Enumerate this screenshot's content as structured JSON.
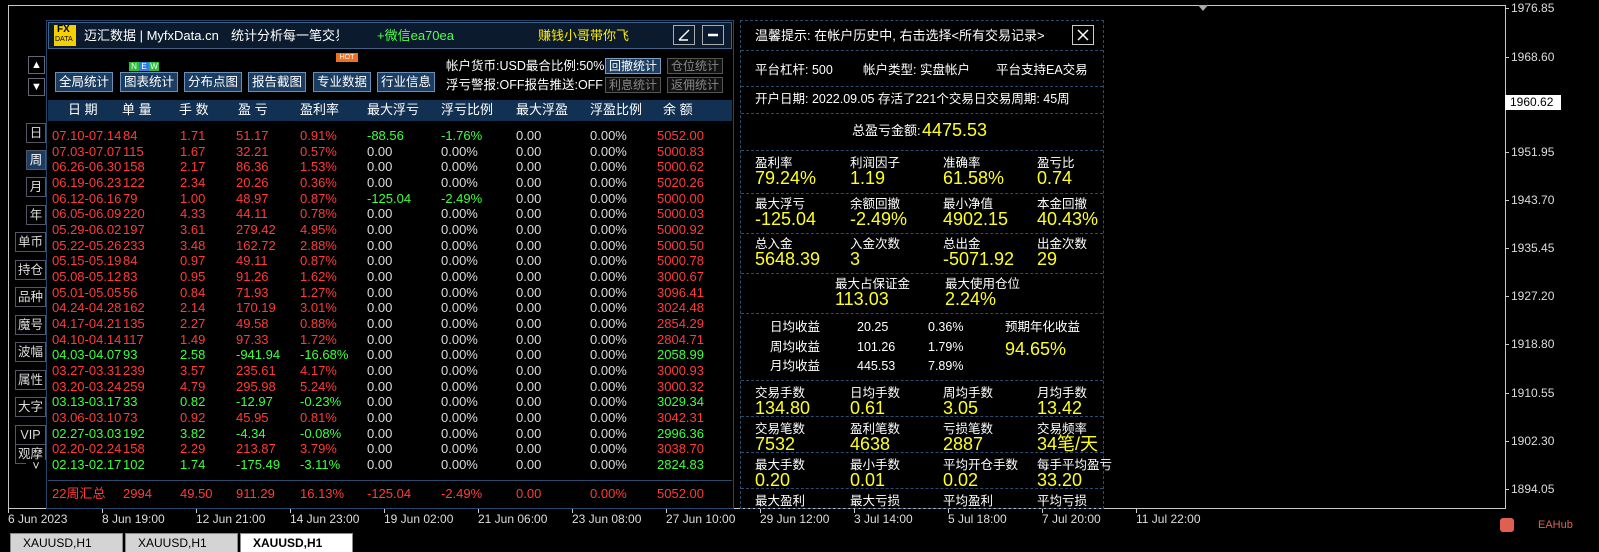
{
  "chart": {
    "price_labels": [
      "1976.85",
      "1968.60",
      "1951.95",
      "1943.70",
      "1935.45",
      "1927.20",
      "1918.80",
      "1910.55",
      "1902.30",
      "1894.05"
    ],
    "current_price": "1960.62",
    "time_labels": [
      "6 Jun 2023",
      "8 Jun 19:00",
      "12 Jun 21:00",
      "14 Jun 23:00",
      "19 Jun 02:00",
      "21 Jun 06:00",
      "23 Jun 08:00",
      "27 Jun 10:00",
      "29 Jun 12:00",
      "3 Jul 14:00",
      "5 Jul 18:00",
      "7 Jul 20:00",
      "11 Jul 22:00"
    ],
    "tabs": [
      "XAUUSD,H1",
      "XAUUSD,H1",
      "XAUUSD,H1"
    ],
    "watermark": "EAHub"
  },
  "panel": {
    "logo": [
      "FX",
      "DATA"
    ],
    "brand": "迈汇数据 | MyfxData.cn",
    "slogan": "统计分析每一笔交易",
    "wechat": "+微信ea70ea",
    "motto": "赚钱小哥带你飞",
    "buttons": [
      "全局统计",
      "图表统计",
      "分布点图",
      "报告截图",
      "专业数据",
      "行业信息"
    ],
    "badge_new": [
      "N",
      "E",
      "W"
    ],
    "badge_hot": "HOT",
    "info": [
      {
        "text": "帐户货币:USD最合比例:50%",
        "buttons": [
          "回撤统计",
          "仓位统计"
        ]
      },
      {
        "text": "浮亏警报:OFF报告推送:OFF",
        "buttons": [
          "利息统计",
          "返佣统计"
        ]
      }
    ],
    "arrows": [
      "▲",
      "▼"
    ],
    "side_buttons": [
      "日",
      "周",
      "月",
      "年",
      "单币",
      "持仓",
      "品种",
      "魔号",
      "波幅",
      "属性",
      "大字",
      "VIP",
      "观摩",
      "˅"
    ],
    "table": {
      "headers": [
        "日 期",
        "单 量",
        "手 数",
        "盈 亏",
        "盈利率",
        "最大浮亏",
        "浮亏比例",
        "最大浮盈",
        "浮盈比例",
        "余 额"
      ],
      "rows": [
        [
          "07.10-07.14",
          "84",
          "1.71",
          "51.17",
          "0.91%",
          "-88.56",
          "-1.76%",
          "0.00",
          "0.00%",
          "5052.00"
        ],
        [
          "07.03-07.07",
          "115",
          "1.67",
          "32.21",
          "0.57%",
          "0.00",
          "0.00%",
          "0.00",
          "0.00%",
          "5000.83"
        ],
        [
          "06.26-06.30",
          "158",
          "2.17",
          "86.36",
          "1.53%",
          "0.00",
          "0.00%",
          "0.00",
          "0.00%",
          "5000.62"
        ],
        [
          "06.19-06.23",
          "122",
          "2.34",
          "20.26",
          "0.36%",
          "0.00",
          "0.00%",
          "0.00",
          "0.00%",
          "5020.26"
        ],
        [
          "06.12-06.16",
          "79",
          "1.00",
          "48.97",
          "0.87%",
          "-125.04",
          "-2.49%",
          "0.00",
          "0.00%",
          "5000.00"
        ],
        [
          "06.05-06.09",
          "220",
          "4.33",
          "44.11",
          "0.78%",
          "0.00",
          "0.00%",
          "0.00",
          "0.00%",
          "5000.03"
        ],
        [
          "05.29-06.02",
          "197",
          "3.61",
          "279.42",
          "4.95%",
          "0.00",
          "0.00%",
          "0.00",
          "0.00%",
          "5000.92"
        ],
        [
          "05.22-05.26",
          "233",
          "3.48",
          "162.72",
          "2.88%",
          "0.00",
          "0.00%",
          "0.00",
          "0.00%",
          "5000.50"
        ],
        [
          "05.15-05.19",
          "84",
          "0.97",
          "49.11",
          "0.87%",
          "0.00",
          "0.00%",
          "0.00",
          "0.00%",
          "5000.78"
        ],
        [
          "05.08-05.12",
          "83",
          "0.95",
          "91.26",
          "1.62%",
          "0.00",
          "0.00%",
          "0.00",
          "0.00%",
          "3000.67"
        ],
        [
          "05.01-05.05",
          "56",
          "0.84",
          "71.93",
          "1.27%",
          "0.00",
          "0.00%",
          "0.00",
          "0.00%",
          "3096.41"
        ],
        [
          "04.24-04.28",
          "162",
          "2.14",
          "170.19",
          "3.01%",
          "0.00",
          "0.00%",
          "0.00",
          "0.00%",
          "3024.48"
        ],
        [
          "04.17-04.21",
          "135",
          "2.27",
          "49.58",
          "0.88%",
          "0.00",
          "0.00%",
          "0.00",
          "0.00%",
          "2854.29"
        ],
        [
          "04.10-04.14",
          "117",
          "1.49",
          "97.33",
          "1.72%",
          "0.00",
          "0.00%",
          "0.00",
          "0.00%",
          "2804.71"
        ],
        [
          "04.03-04.07",
          "93",
          "2.58",
          "-941.94",
          "-16.68%",
          "0.00",
          "0.00%",
          "0.00",
          "0.00%",
          "2058.99"
        ],
        [
          "03.27-03.31",
          "239",
          "3.57",
          "235.61",
          "4.17%",
          "0.00",
          "0.00%",
          "0.00",
          "0.00%",
          "3000.93"
        ],
        [
          "03.20-03.24",
          "259",
          "4.79",
          "295.98",
          "5.24%",
          "0.00",
          "0.00%",
          "0.00",
          "0.00%",
          "3000.32"
        ],
        [
          "03.13-03.17",
          "33",
          "0.82",
          "-12.97",
          "-0.23%",
          "0.00",
          "0.00%",
          "0.00",
          "0.00%",
          "3029.34"
        ],
        [
          "03.06-03.10",
          "73",
          "0.92",
          "45.95",
          "0.81%",
          "0.00",
          "0.00%",
          "0.00",
          "0.00%",
          "3042.31"
        ],
        [
          "02.27-03.03",
          "192",
          "3.82",
          "-4.34",
          "-0.08%",
          "0.00",
          "0.00%",
          "0.00",
          "0.00%",
          "2996.36"
        ],
        [
          "02.20-02.24",
          "158",
          "2.29",
          "213.87",
          "3.79%",
          "0.00",
          "0.00%",
          "0.00",
          "0.00%",
          "3038.70"
        ],
        [
          "02.13-02.17",
          "102",
          "1.74",
          "-175.49",
          "-3.11%",
          "0.00",
          "0.00%",
          "0.00",
          "0.00%",
          "2824.83"
        ]
      ],
      "summary": [
        "22周汇总",
        "2994",
        "49.50",
        "911.29",
        "16.13%",
        "-125.04",
        "-2.49%",
        "0.00",
        "0.00%",
        "5052.00"
      ]
    }
  },
  "stats": {
    "tip": "温馨提示: 在帐户历史中, 右击选择<所有交易记录>",
    "account": [
      "平台杠杆: 500",
      "帐户类型: 实盘帐户",
      "平台支持EA交易"
    ],
    "open": "开户日期: 2022.09.05 存活了221个交易日交易周期: 45周",
    "total_label": "总盈亏金额:",
    "total": "4475.53",
    "grid": [
      [
        {
          "label": "盈利率",
          "value": "79.24%"
        },
        {
          "label": "利润因子",
          "value": "1.19"
        },
        {
          "label": "准确率",
          "value": "61.58%"
        },
        {
          "label": "盈亏比",
          "value": "0.74"
        }
      ],
      [
        {
          "label": "最大浮亏",
          "value": "-125.04"
        },
        {
          "label": "余额回撤",
          "value": "-2.49%"
        },
        {
          "label": "最小净值",
          "value": "4902.15"
        },
        {
          "label": "本金回撤",
          "value": "40.43%"
        }
      ],
      [
        {
          "label": "总入金",
          "value": "5648.39"
        },
        {
          "label": "入金次数",
          "value": "3"
        },
        {
          "label": "总出金",
          "value": "-5071.92"
        },
        {
          "label": "出金次数",
          "value": "29"
        }
      ]
    ],
    "margin": [
      {
        "label": "最大占保证金",
        "value": "113.03"
      },
      {
        "label": "最大使用仓位",
        "value": "2.24%"
      }
    ],
    "averages": [
      [
        "日均收益",
        "20.25",
        "0.36%"
      ],
      [
        "周均收益",
        "101.26",
        "1.79%"
      ],
      [
        "月均收益",
        "445.53",
        "7.89%"
      ]
    ],
    "annual": {
      "label": "预期年化收益",
      "value": "94.65%"
    },
    "trade_grid": [
      [
        {
          "label": "交易手数",
          "value": "134.80"
        },
        {
          "label": "日均手数",
          "value": "0.61"
        },
        {
          "label": "周均手数",
          "value": "3.05"
        },
        {
          "label": "月均手数",
          "value": "13.42"
        }
      ],
      [
        {
          "label": "交易笔数",
          "value": "7532"
        },
        {
          "label": "盈利笔数",
          "value": "4638"
        },
        {
          "label": "亏损笔数",
          "value": "2887"
        },
        {
          "label": "交易频率",
          "value": "34笔/天"
        }
      ],
      [
        {
          "label": "最大手数",
          "value": "0.20"
        },
        {
          "label": "最小手数",
          "value": "0.01"
        },
        {
          "label": "平均开仓手数",
          "value": "0.02"
        },
        {
          "label": "每手平均盈亏",
          "value": "33.20"
        }
      ],
      [
        {
          "label": "最大盈利"
        },
        {
          "label": "最大亏损"
        },
        {
          "label": "平均盈利"
        },
        {
          "label": "平均亏损"
        }
      ]
    ]
  }
}
